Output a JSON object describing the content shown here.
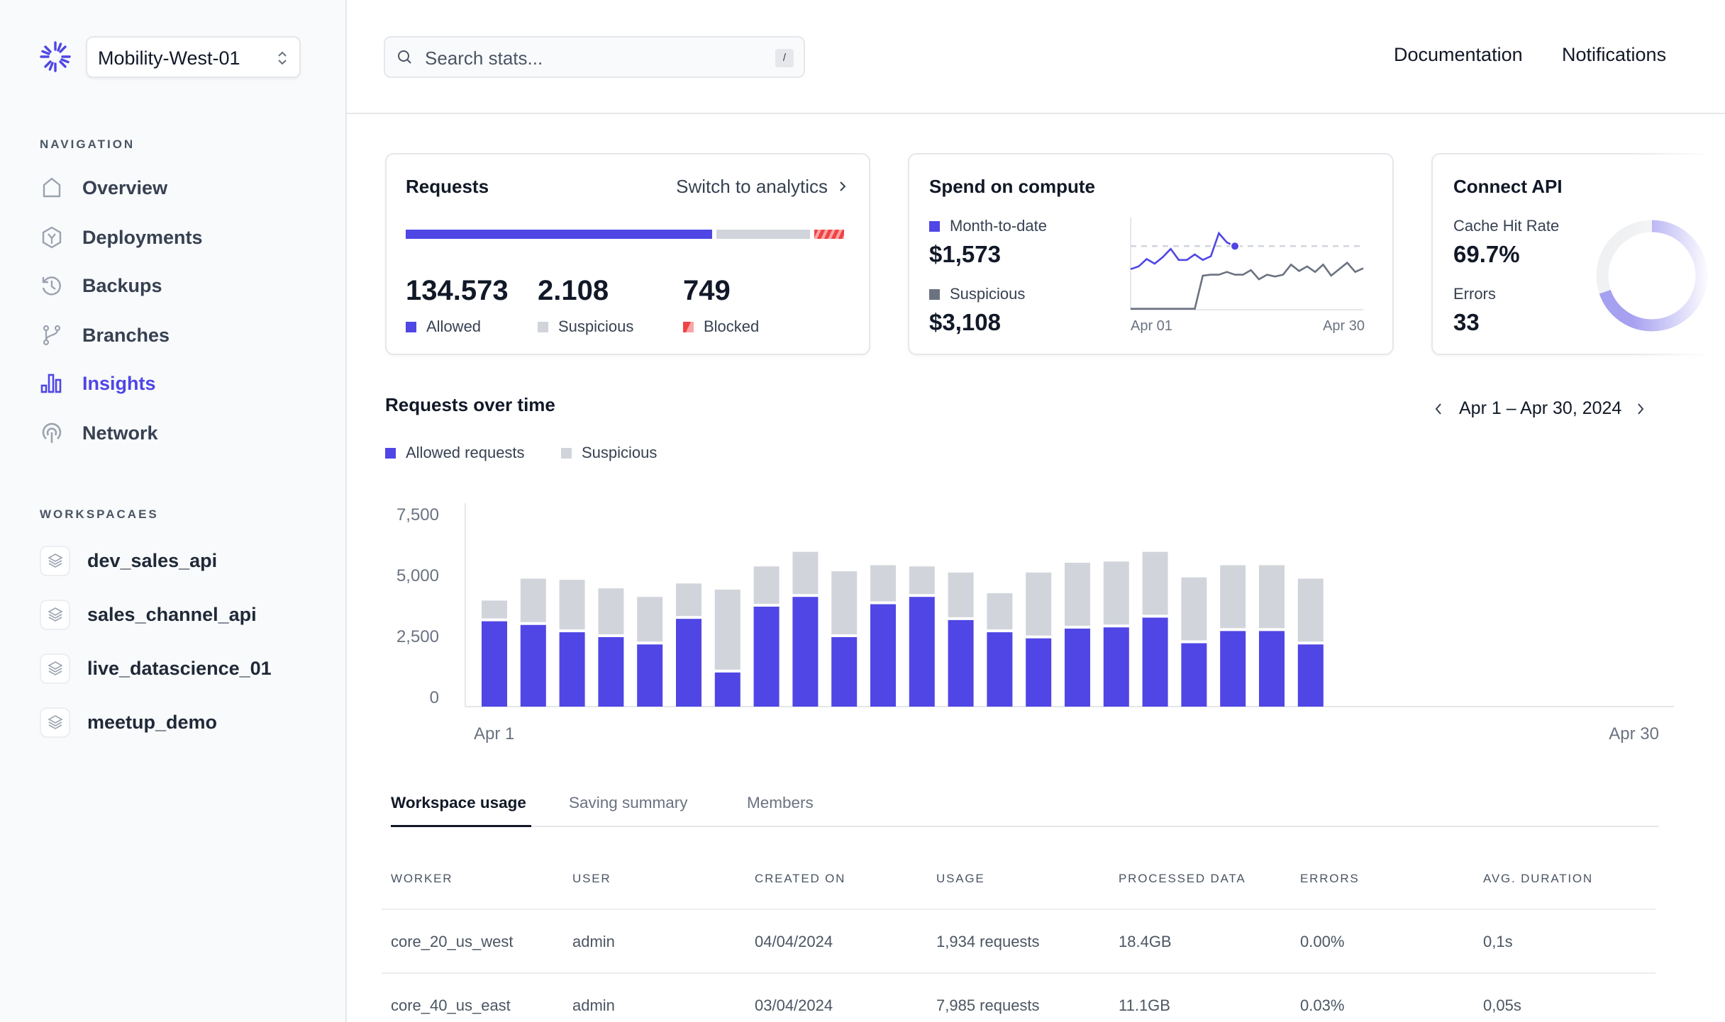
{
  "sidebar": {
    "workspace_selector": "Mobility-West-01",
    "nav_label": "NAVIGATION",
    "nav": [
      {
        "label": "Overview",
        "icon": "home-icon"
      },
      {
        "label": "Deployments",
        "icon": "package-icon"
      },
      {
        "label": "Backups",
        "icon": "history-icon"
      },
      {
        "label": "Branches",
        "icon": "git-branch-icon"
      },
      {
        "label": "Insights",
        "icon": "bar-chart-icon",
        "active": true
      },
      {
        "label": "Network",
        "icon": "broadcast-icon"
      }
    ],
    "workspaces_label": "WORKSPACAES",
    "workspaces": [
      "dev_sales_api",
      "sales_channel_api",
      "live_datascience_01",
      "meetup_demo"
    ]
  },
  "header": {
    "search_placeholder": "Search stats...",
    "search_shortcut": "/",
    "links": [
      "Documentation",
      "Notifications"
    ]
  },
  "colors": {
    "accent": "#4f46e5",
    "suspicious": "#d1d5db",
    "blocked": "#ef4444",
    "suspicious_dark": "#6b7280"
  },
  "requests_card": {
    "title": "Requests",
    "switch_label": "Switch to analytics",
    "stats": [
      {
        "value": "134.573",
        "label": "Allowed"
      },
      {
        "value": "2.108",
        "label": "Suspicious"
      },
      {
        "value": "749",
        "label": "Blocked"
      }
    ],
    "bar_shares": {
      "allowed": 0.77,
      "suspicious": 0.22,
      "blocked": 0.07
    }
  },
  "spend_card": {
    "title": "Spend on compute",
    "month_label": "Month-to-date",
    "month_value": "$1,573",
    "susp_label": "Suspicious",
    "susp_value": "$3,108",
    "x_start": "Apr 01",
    "x_end": "Apr 30",
    "sparkline": {
      "reference_level": 69,
      "month_to_date": [
        [
          1,
          44
        ],
        [
          2,
          47
        ],
        [
          3,
          55
        ],
        [
          4,
          50
        ],
        [
          5,
          57
        ],
        [
          6,
          66
        ],
        [
          7,
          54
        ],
        [
          8,
          54
        ],
        [
          9,
          60
        ],
        [
          10,
          54
        ],
        [
          11,
          58
        ],
        [
          12,
          83
        ],
        [
          13,
          73
        ],
        [
          14,
          69
        ]
      ],
      "suspicious": [
        [
          1,
          1
        ],
        [
          9,
          1
        ],
        [
          10,
          37
        ],
        [
          11,
          38
        ],
        [
          12,
          38
        ],
        [
          13,
          41
        ],
        [
          14,
          38
        ],
        [
          15,
          38
        ],
        [
          16,
          43
        ],
        [
          17,
          33
        ],
        [
          18,
          38
        ],
        [
          19,
          36
        ],
        [
          20,
          38
        ],
        [
          21,
          49
        ],
        [
          22,
          42
        ],
        [
          23,
          47
        ],
        [
          24,
          41
        ],
        [
          25,
          49
        ],
        [
          26,
          37
        ],
        [
          28,
          51
        ],
        [
          29,
          41
        ],
        [
          30,
          45
        ]
      ]
    }
  },
  "api_card": {
    "title": "Connect API",
    "cache_label": "Cache Hit Rate",
    "cache_value": "69.7%",
    "cache_fraction": 0.697,
    "errors_label": "Errors",
    "errors_value": "33"
  },
  "chart_data": {
    "type": "bar",
    "stacked": true,
    "title": "Requests over time",
    "date_range": "Apr 1 – Apr 30, 2024",
    "legend": [
      "Allowed requests",
      "Suspicious"
    ],
    "legend_placement": "top-left",
    "x_ticks": [
      "Apr 1",
      "Apr 30"
    ],
    "x_range": [
      1,
      30
    ],
    "days": [
      1,
      2,
      3,
      4,
      5,
      6,
      7,
      8,
      9,
      10,
      11,
      12,
      13,
      14,
      15,
      16,
      17,
      18,
      19,
      20,
      21,
      22
    ],
    "y_ticks": [
      "0",
      "2,500",
      "5,000",
      "7,500"
    ],
    "y_tick_values": [
      0,
      2500,
      5000,
      7500
    ],
    "ylim": [
      0,
      8000
    ],
    "grid": false,
    "series": [
      {
        "name": "Allowed requests",
        "values": [
          3500,
          3350,
          3050,
          2850,
          2550,
          3600,
          1400,
          4100,
          4500,
          2850,
          4200,
          4500,
          3550,
          3050,
          2800,
          3200,
          3250,
          3650,
          2600,
          3100,
          3100,
          2550
        ]
      },
      {
        "name": "Suspicious",
        "values": [
          850,
          1900,
          2150,
          2000,
          1950,
          1450,
          3400,
          1650,
          1850,
          2700,
          1600,
          1250,
          1950,
          1600,
          2700,
          2700,
          2700,
          2700,
          2700,
          2700,
          2700,
          2700
        ]
      }
    ]
  },
  "tabs": [
    "Workspace usage",
    "Saving summary",
    "Members"
  ],
  "table": {
    "columns": [
      "WORKER",
      "USER",
      "CREATED ON",
      "USAGE",
      "PROCESSED DATA",
      "ERRORS",
      "AVG. DURATION"
    ],
    "rows": [
      [
        "core_20_us_west",
        "admin",
        "04/04/2024",
        "1,934 requests",
        "18.4GB",
        "0.00%",
        "0,1s"
      ],
      [
        "core_40_us_east",
        "admin",
        "03/04/2024",
        "7,985 requests",
        "11.1GB",
        "0.03%",
        "0,05s"
      ]
    ]
  }
}
